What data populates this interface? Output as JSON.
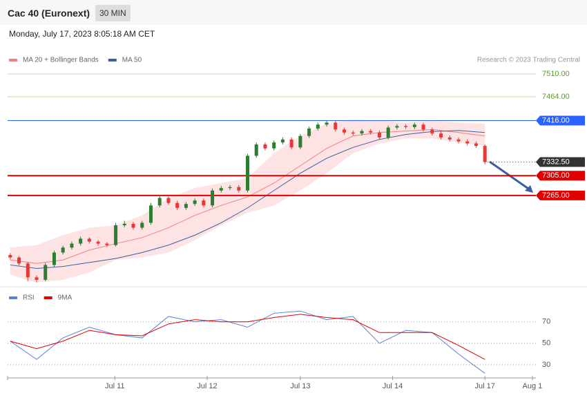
{
  "header": {
    "title": "Cac 40 (Euronext)",
    "interval": "30 MIN",
    "timestamp": "Monday, July 17, 2023 8:05:18 AM CET"
  },
  "chart_data": [
    {
      "type": "candlestick",
      "legend": [
        {
          "name": "MA 20 + Bollinger Bands",
          "color": "#f08080"
        },
        {
          "name": "MA 50",
          "color": "#3a5fa0"
        }
      ],
      "credit": "Research © 2023 Trading Central",
      "xlim": [
        -0.3,
        59.8
      ],
      "xticks": [
        {
          "value": 11.9,
          "label": "Jul 11"
        },
        {
          "value": 22.4,
          "label": "Jul 12"
        },
        {
          "value": 33,
          "label": "Jul 13"
        },
        {
          "value": 43.5,
          "label": "Jul 14"
        },
        {
          "value": 54,
          "label": "Jul 17"
        },
        {
          "value": 59.4,
          "label": "Aug 1"
        }
      ],
      "ylim": [
        7088,
        7524
      ],
      "up_color": "#2e7d32",
      "down_color": "#e53935",
      "candles": [
        [
          7145,
          7149,
          7136,
          7140
        ],
        [
          7140,
          7143,
          7124,
          7128
        ],
        [
          7128,
          7131,
          7092,
          7100
        ],
        [
          7100,
          7104,
          7090,
          7095
        ],
        [
          7095,
          7129,
          7092,
          7125
        ],
        [
          7125,
          7154,
          7121,
          7150
        ],
        [
          7150,
          7164,
          7146,
          7160
        ],
        [
          7160,
          7172,
          7156,
          7168
        ],
        [
          7168,
          7182,
          7164,
          7178
        ],
        [
          7178,
          7181,
          7168,
          7172
        ],
        [
          7172,
          7175,
          7164,
          7168
        ],
        [
          7168,
          7171,
          7161,
          7165
        ],
        [
          7165,
          7210,
          7162,
          7205
        ],
        [
          7205,
          7214,
          7201,
          7208
        ],
        [
          7208,
          7212,
          7196,
          7200
        ],
        [
          7200,
          7214,
          7196,
          7210
        ],
        [
          7210,
          7250,
          7206,
          7245
        ],
        [
          7245,
          7266,
          7241,
          7260
        ],
        [
          7260,
          7264,
          7246,
          7250
        ],
        [
          7250,
          7254,
          7236,
          7240
        ],
        [
          7240,
          7252,
          7236,
          7248
        ],
        [
          7248,
          7259,
          7244,
          7255
        ],
        [
          7255,
          7259,
          7241,
          7245
        ],
        [
          7245,
          7279,
          7241,
          7275
        ],
        [
          7275,
          7284,
          7271,
          7280
        ],
        [
          7280,
          7286,
          7276,
          7282
        ],
        [
          7282,
          7286,
          7271,
          7275
        ],
        [
          7275,
          7349,
          7271,
          7345
        ],
        [
          7345,
          7372,
          7341,
          7368
        ],
        [
          7368,
          7372,
          7356,
          7360
        ],
        [
          7360,
          7376,
          7356,
          7372
        ],
        [
          7372,
          7382,
          7368,
          7378
        ],
        [
          7378,
          7382,
          7358,
          7362
        ],
        [
          7362,
          7389,
          7358,
          7385
        ],
        [
          7385,
          7404,
          7381,
          7400
        ],
        [
          7400,
          7412,
          7396,
          7408
        ],
        [
          7408,
          7416,
          7404,
          7412
        ],
        [
          7412,
          7416,
          7394,
          7398
        ],
        [
          7398,
          7402,
          7388,
          7392
        ],
        [
          7392,
          7396,
          7386,
          7390
        ],
        [
          7390,
          7399,
          7386,
          7395
        ],
        [
          7395,
          7399,
          7388,
          7392
        ],
        [
          7392,
          7396,
          7378,
          7382
        ],
        [
          7382,
          7406,
          7378,
          7402
        ],
        [
          7402,
          7409,
          7398,
          7405
        ],
        [
          7405,
          7409,
          7399,
          7403
        ],
        [
          7403,
          7412,
          7399,
          7408
        ],
        [
          7408,
          7412,
          7394,
          7398
        ],
        [
          7398,
          7402,
          7386,
          7390
        ],
        [
          7390,
          7394,
          7378,
          7382
        ],
        [
          7382,
          7386,
          7374,
          7378
        ],
        [
          7378,
          7382,
          7370,
          7374
        ],
        [
          7374,
          7378,
          7366,
          7370
        ],
        [
          7370,
          7374,
          7361,
          7365
        ],
        [
          7365,
          7368,
          7328,
          7332.5
        ]
      ],
      "ind_x": [
        0,
        3,
        6,
        9,
        12,
        15,
        18,
        21,
        24,
        27,
        30,
        33,
        36,
        39,
        42,
        45,
        48,
        51,
        54
      ],
      "bb_upper": [
        7160,
        7165,
        7185,
        7200,
        7205,
        7225,
        7260,
        7280,
        7290,
        7300,
        7350,
        7385,
        7410,
        7418,
        7416,
        7412,
        7415,
        7412,
        7410
      ],
      "bb_lower": [
        7105,
        7090,
        7095,
        7110,
        7135,
        7140,
        7150,
        7175,
        7205,
        7230,
        7245,
        7275,
        7310,
        7350,
        7370,
        7380,
        7380,
        7372,
        7365
      ],
      "ma20": [
        7135,
        7128,
        7135,
        7155,
        7168,
        7180,
        7200,
        7225,
        7245,
        7262,
        7290,
        7325,
        7360,
        7385,
        7392,
        7395,
        7398,
        7392,
        7385
      ],
      "ma50": [
        7125,
        7118,
        7122,
        7130,
        7138,
        7150,
        7165,
        7185,
        7210,
        7240,
        7275,
        7310,
        7340,
        7362,
        7378,
        7388,
        7394,
        7396,
        7392
      ],
      "levels": [
        {
          "value": 7510,
          "label": "7510.00",
          "color": "#5a9e2a",
          "style": "text"
        },
        {
          "value": 7464,
          "label": "7464.00",
          "color": "#5a9e2a",
          "style": "text"
        },
        {
          "value": 7416,
          "label": "7416.00",
          "color": "#2962ff",
          "style": "tag"
        },
        {
          "value": 7305,
          "label": "7305.00",
          "color": "#e00000",
          "style": "tag"
        },
        {
          "value": 7265,
          "label": "7265.00",
          "color": "#e00000",
          "style": "tag"
        }
      ],
      "last": {
        "value": 7332.5,
        "label": "7332.50",
        "color": "#333333"
      }
    },
    {
      "type": "line",
      "legend": [
        {
          "name": "RSI",
          "color": "#5b7fd6"
        },
        {
          "name": "9MA",
          "color": "#e00000"
        }
      ],
      "ylim": [
        19,
        93
      ],
      "yticks": [
        30,
        50,
        70
      ],
      "x": [
        0,
        3,
        6,
        9,
        12,
        15,
        18,
        21,
        24,
        27,
        30,
        33,
        36,
        39,
        42,
        45,
        48,
        51,
        54
      ],
      "series": [
        {
          "name": "RSI",
          "color": "#5b7fd6",
          "values": [
            52,
            35,
            55,
            65,
            58,
            55,
            75,
            70,
            72,
            65,
            78,
            80,
            72,
            75,
            50,
            62,
            60,
            40,
            22
          ]
        },
        {
          "name": "9MA",
          "color": "#e00000",
          "values": [
            52,
            45,
            52,
            62,
            58,
            57,
            68,
            72,
            70,
            70,
            74,
            77,
            74,
            72,
            60,
            60,
            60,
            48,
            35
          ]
        }
      ]
    }
  ]
}
